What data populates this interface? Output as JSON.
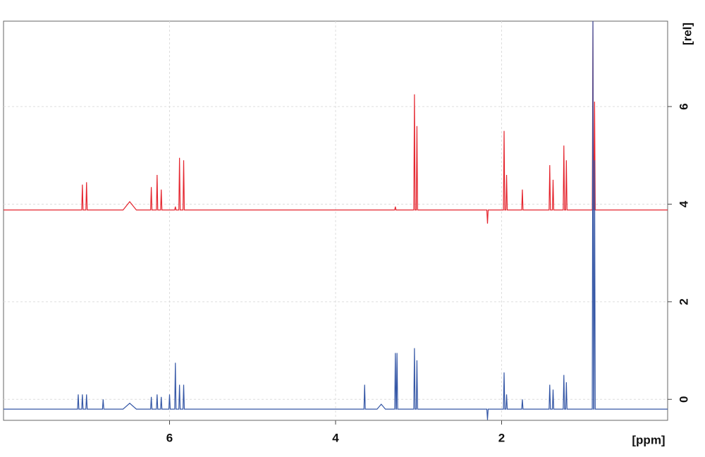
{
  "chart_data": {
    "type": "line",
    "x_label": "[ppm]",
    "y_label": "[rel]",
    "xlim": [
      8.0,
      0.0
    ],
    "ylim": [
      -0.43,
      7.75
    ],
    "xticks": [
      6,
      4,
      2
    ],
    "yticks": [
      0,
      2,
      4,
      6
    ],
    "grid": true,
    "x": [
      8.0,
      7.108,
      7.1,
      7.092,
      7.058,
      7.05,
      7.042,
      7.008,
      7.0,
      6.992,
      6.808,
      6.8,
      6.792,
      6.56,
      6.48,
      6.4,
      6.228,
      6.22,
      6.212,
      6.158,
      6.15,
      6.142,
      6.108,
      6.1,
      6.092,
      6.008,
      6.0,
      5.992,
      5.938,
      5.93,
      5.922,
      5.888,
      5.88,
      5.872,
      5.838,
      5.83,
      5.822,
      3.658,
      3.65,
      3.642,
      3.5,
      3.45,
      3.4,
      3.288,
      3.28,
      3.272,
      3.268,
      3.26,
      3.252,
      3.058,
      3.05,
      3.042,
      3.028,
      3.02,
      3.012,
      2.178,
      2.17,
      2.162,
      1.978,
      1.97,
      1.962,
      1.948,
      1.94,
      1.932,
      1.758,
      1.75,
      1.742,
      1.428,
      1.42,
      1.412,
      1.388,
      1.38,
      1.372,
      1.258,
      1.25,
      1.242,
      1.228,
      1.22,
      1.212,
      0.908,
      0.9,
      0.892,
      0.888,
      0.88,
      0.872,
      0.0
    ],
    "series": [
      {
        "color": "#e5252e",
        "values": [
          3.88,
          3.88,
          3.88,
          3.88,
          3.88,
          4.4,
          3.88,
          3.88,
          4.45,
          3.88,
          3.88,
          3.88,
          3.88,
          3.88,
          4.05,
          3.88,
          3.88,
          4.35,
          3.88,
          3.88,
          4.6,
          3.88,
          3.88,
          4.3,
          3.88,
          3.88,
          3.88,
          3.88,
          3.88,
          3.95,
          3.88,
          3.88,
          4.95,
          3.88,
          3.88,
          4.9,
          3.88,
          3.88,
          3.88,
          3.88,
          3.88,
          3.88,
          3.88,
          3.88,
          3.95,
          3.88,
          3.88,
          3.88,
          3.88,
          3.88,
          6.25,
          3.88,
          3.88,
          5.6,
          3.88,
          3.88,
          3.6,
          3.88,
          3.88,
          5.5,
          3.88,
          3.88,
          4.6,
          3.88,
          3.88,
          4.3,
          3.88,
          3.88,
          4.8,
          3.88,
          3.88,
          4.5,
          3.88,
          3.88,
          5.2,
          3.88,
          3.88,
          4.9,
          3.88,
          3.88,
          7.75,
          3.88,
          3.88,
          6.1,
          3.88,
          3.88
        ]
      },
      {
        "color": "#3557a6",
        "values": [
          -0.2,
          -0.2,
          0.1,
          -0.2,
          -0.2,
          0.1,
          -0.2,
          -0.2,
          0.1,
          -0.2,
          -0.2,
          0.0,
          -0.2,
          -0.2,
          -0.08,
          -0.2,
          -0.2,
          0.05,
          -0.2,
          -0.2,
          0.1,
          -0.2,
          -0.2,
          0.05,
          -0.2,
          -0.2,
          0.1,
          -0.2,
          -0.2,
          0.75,
          -0.2,
          -0.2,
          0.3,
          -0.2,
          -0.2,
          0.3,
          -0.2,
          -0.2,
          0.3,
          -0.2,
          -0.2,
          -0.1,
          -0.2,
          -0.2,
          0.95,
          -0.2,
          -0.2,
          0.95,
          -0.2,
          -0.2,
          1.05,
          -0.2,
          -0.2,
          0.8,
          -0.2,
          -0.2,
          -0.42,
          -0.2,
          -0.2,
          0.55,
          -0.2,
          -0.2,
          0.1,
          -0.2,
          -0.2,
          0.0,
          -0.2,
          -0.2,
          0.3,
          -0.2,
          -0.2,
          0.2,
          -0.2,
          -0.2,
          0.5,
          -0.2,
          -0.2,
          0.35,
          -0.2,
          -0.2,
          7.75,
          -0.2,
          -0.2,
          4.9,
          -0.2,
          -0.2
        ]
      }
    ]
  }
}
